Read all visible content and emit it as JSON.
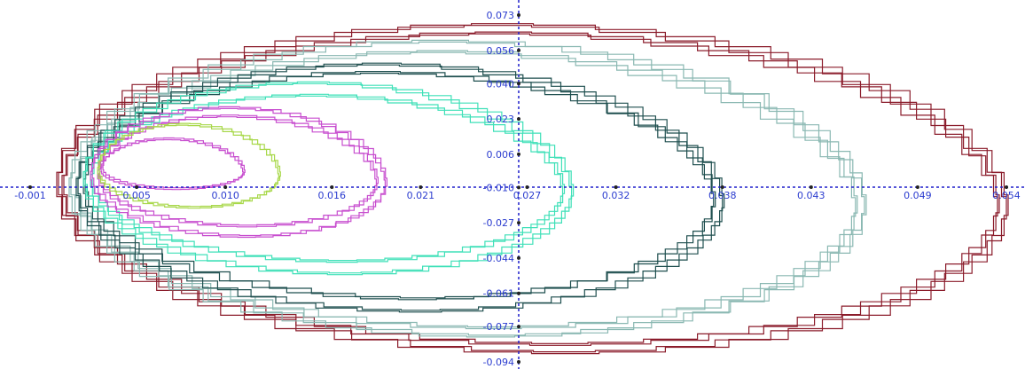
{
  "chart_data": {
    "type": "line",
    "title": "",
    "xlabel": "",
    "ylabel": "",
    "x_ticks": [
      "-0.001",
      "0.005",
      "0.010",
      "0.016",
      "0.021",
      "0.027",
      "0.032",
      "0.038",
      "0.043",
      "0.049",
      "0.054"
    ],
    "y_ticks": [
      "0.073",
      "0.056",
      "0.040",
      "0.023",
      "0.006",
      "-0.010",
      "-0.027",
      "-0.044",
      "-0.061",
      "-0.077",
      "-0.094"
    ],
    "xlim": [
      -0.001,
      0.054
    ],
    "ylim": [
      -0.094,
      0.073
    ],
    "grid": false,
    "legend": "none",
    "axis_color": "#1f1fcc",
    "tick_label_color": "#2b3ccf",
    "series": [
      {
        "color": "#8b1c2b",
        "x_min": 0.0005,
        "x_max": 0.054,
        "y_top": 0.068,
        "y_bottom": -0.09
      },
      {
        "color": "#8b1c2b",
        "x_min": 0.0008,
        "x_max": 0.0535,
        "y_top": 0.064,
        "y_bottom": -0.086
      },
      {
        "color": "#8ab8b2",
        "x_min": 0.0012,
        "x_max": 0.046,
        "y_top": 0.06,
        "y_bottom": -0.082
      },
      {
        "color": "#8ab8b2",
        "x_min": 0.0016,
        "x_max": 0.0455,
        "y_top": 0.055,
        "y_bottom": -0.078
      },
      {
        "color": "#1f4f4f",
        "x_min": 0.0016,
        "x_max": 0.038,
        "y_top": 0.049,
        "y_bottom": -0.07
      },
      {
        "color": "#1f4f4f",
        "x_min": 0.002,
        "x_max": 0.0375,
        "y_top": 0.045,
        "y_bottom": -0.064
      },
      {
        "color": "#3fe0b8",
        "x_min": 0.002,
        "x_max": 0.0295,
        "y_top": 0.04,
        "y_bottom": -0.052
      },
      {
        "color": "#3fe0b8",
        "x_min": 0.0024,
        "x_max": 0.029,
        "y_top": 0.034,
        "y_bottom": -0.046
      },
      {
        "color": "#c84fcf",
        "x_min": 0.0024,
        "x_max": 0.019,
        "y_top": 0.028,
        "y_bottom": -0.034
      },
      {
        "color": "#c84fcf",
        "x_min": 0.0028,
        "x_max": 0.0185,
        "y_top": 0.024,
        "y_bottom": -0.029
      },
      {
        "color": "#a8d84a",
        "x_min": 0.0028,
        "x_max": 0.013,
        "y_top": 0.02,
        "y_bottom": -0.02
      },
      {
        "color": "#c84fcf",
        "x_min": 0.003,
        "x_max": 0.011,
        "y_top": 0.013,
        "y_bottom": -0.011
      }
    ]
  }
}
